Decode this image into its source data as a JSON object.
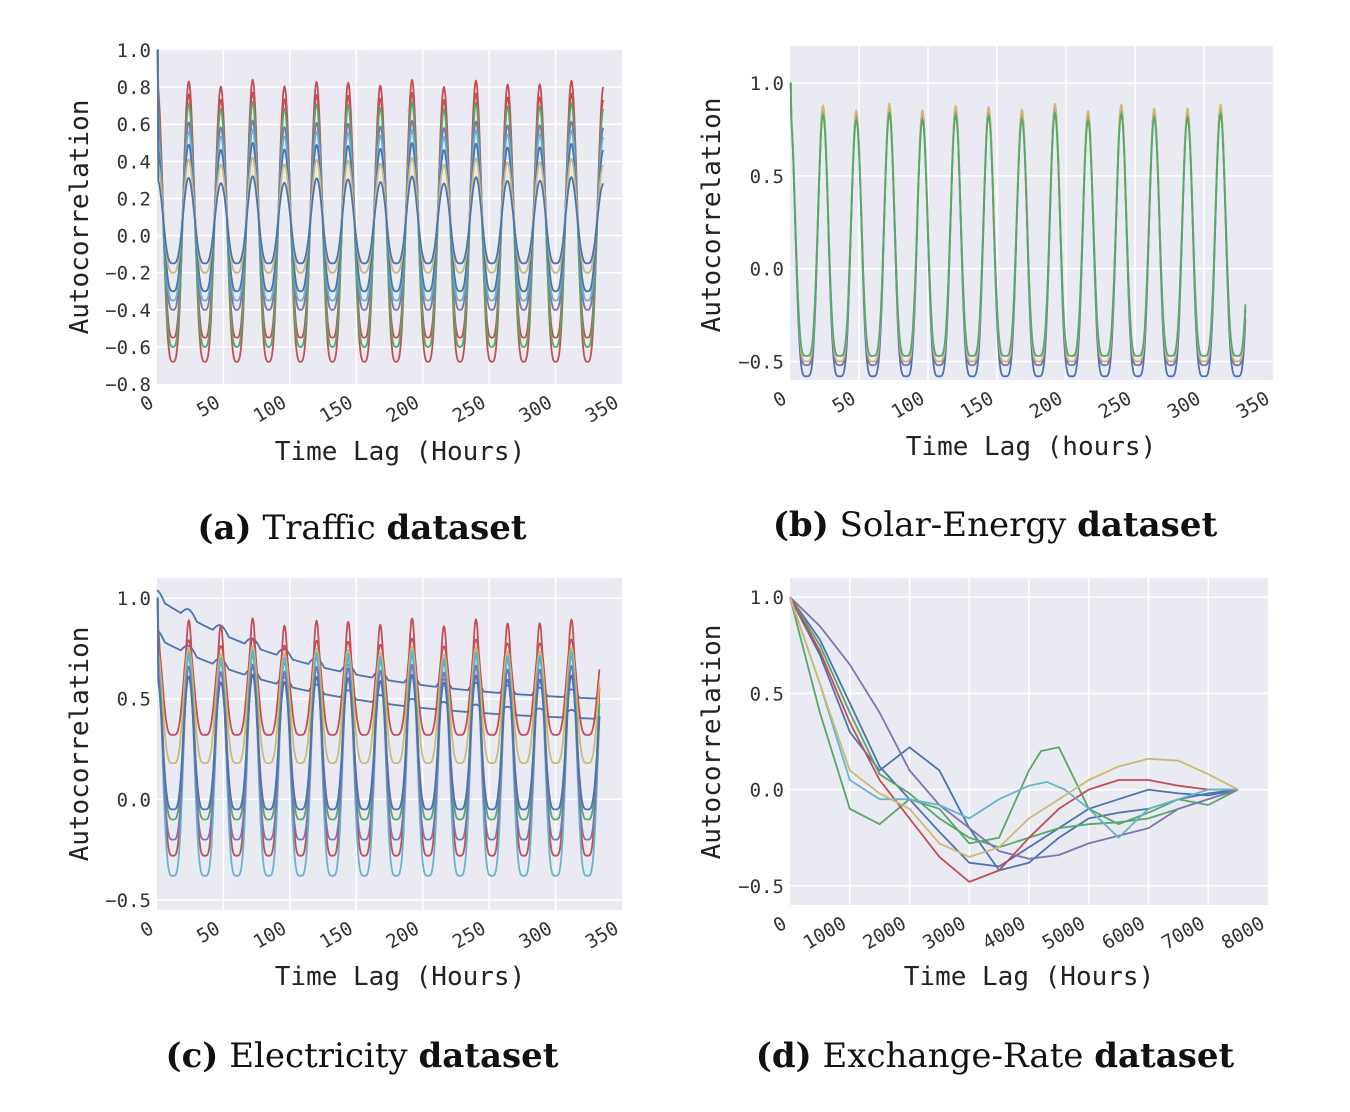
{
  "chart_data": [
    {
      "type": "line",
      "panel": "a",
      "caption": {
        "letter": "(a)",
        "name": "Traffic",
        "suffix": "dataset"
      },
      "xlabel": "Time Lag (Hours)",
      "ylabel": "Autocorrelation",
      "xlim": [
        0,
        350
      ],
      "ylim": [
        -0.8,
        1.0
      ],
      "x_ticks": [
        "0",
        "50",
        "100",
        "150",
        "200",
        "250",
        "300",
        "350"
      ],
      "y_ticks": [
        "−0.8",
        "−0.6",
        "−0.4",
        "−0.2",
        "0.0",
        "0.2",
        "0.4",
        "0.6",
        "0.8",
        "1.0"
      ],
      "x_tick_values": [
        0,
        50,
        100,
        150,
        200,
        250,
        300,
        350
      ],
      "y_tick_values": [
        -0.8,
        -0.6,
        -0.4,
        -0.2,
        0.0,
        0.2,
        0.4,
        0.6,
        0.8,
        1.0
      ],
      "period_hours": 24,
      "lag_max": 336,
      "series": [
        {
          "name": "series-1",
          "color": "#c44e52",
          "peak": 0.82,
          "trough": -0.68,
          "width": 0.6
        },
        {
          "name": "series-2",
          "color": "#c44e52",
          "peak": 0.75,
          "trough": -0.55,
          "width": 0.6
        },
        {
          "name": "series-3",
          "color": "#55a868",
          "peak": 0.7,
          "trough": -0.6,
          "width": 0.6
        },
        {
          "name": "series-4",
          "color": "#8172b2",
          "peak": 0.6,
          "trough": -0.4,
          "width": 0.6
        },
        {
          "name": "series-5",
          "color": "#64b5cd",
          "peak": 0.55,
          "trough": -0.35,
          "width": 0.6
        },
        {
          "name": "series-6",
          "color": "#4c72b0",
          "peak": 0.48,
          "trough": -0.3,
          "width": 0.6
        },
        {
          "name": "series-7",
          "color": "#ccb974",
          "peak": 0.4,
          "trough": -0.2,
          "width": 0.6
        },
        {
          "name": "series-8",
          "color": "#4c72b0",
          "peak": 0.3,
          "trough": -0.15,
          "width": 0.6
        }
      ]
    },
    {
      "type": "line",
      "panel": "b",
      "caption": {
        "letter": "(b)",
        "name": "Solar-Energy",
        "suffix": "dataset"
      },
      "xlabel": "Time Lag (hours)",
      "ylabel": "Autocorrelation",
      "xlim": [
        0,
        350
      ],
      "ylim": [
        -0.6,
        1.2
      ],
      "x_ticks": [
        "0",
        "50",
        "100",
        "150",
        "200",
        "250",
        "300",
        "350"
      ],
      "y_ticks": [
        "−0.5",
        "0.0",
        "0.5",
        "1.0"
      ],
      "x_tick_values": [
        0,
        50,
        100,
        150,
        200,
        250,
        300,
        350
      ],
      "y_tick_values": [
        -0.5,
        0.0,
        0.5,
        1.0
      ],
      "period_hours": 24,
      "lag_max": 330,
      "series": [
        {
          "name": "series-1",
          "color": "#4c72b0",
          "peak": 0.85,
          "trough": -0.58,
          "width": 0.45
        },
        {
          "name": "series-2",
          "color": "#8172b2",
          "peak": 0.86,
          "trough": -0.52,
          "width": 0.45
        },
        {
          "name": "series-3",
          "color": "#ccb974",
          "peak": 0.87,
          "trough": -0.5,
          "width": 0.45
        },
        {
          "name": "series-4",
          "color": "#55a868",
          "peak": 0.82,
          "trough": -0.47,
          "width": 0.45
        }
      ]
    },
    {
      "type": "line",
      "panel": "c",
      "caption": {
        "letter": "(c)",
        "name": "Electricity",
        "suffix": "dataset"
      },
      "xlabel": "Time Lag (Hours)",
      "ylabel": "Autocorrelation",
      "xlim": [
        0,
        350
      ],
      "ylim": [
        -0.55,
        1.1
      ],
      "x_ticks": [
        "0",
        "50",
        "100",
        "150",
        "200",
        "250",
        "300",
        "350"
      ],
      "y_ticks": [
        "−0.5",
        "0.0",
        "0.5",
        "1.0"
      ],
      "x_tick_values": [
        0,
        50,
        100,
        150,
        200,
        250,
        300,
        350
      ],
      "y_tick_values": [
        -0.5,
        0.0,
        0.5,
        1.0
      ],
      "period_hours": 24,
      "lag_max": 333,
      "series": [
        {
          "name": "series-1",
          "color": "#4c72b0",
          "kind": "decay",
          "start": 1.0,
          "end": 0.5
        },
        {
          "name": "series-2",
          "color": "#4c72b0",
          "kind": "decay",
          "start": 0.8,
          "end": 0.4
        },
        {
          "name": "series-3",
          "color": "#c44e52",
          "peak": 0.88,
          "trough": -0.28,
          "width": 0.5
        },
        {
          "name": "series-4",
          "color": "#c44e52",
          "peak": 0.78,
          "trough": 0.32,
          "width": 0.5
        },
        {
          "name": "series-5",
          "color": "#ccb974",
          "peak": 0.74,
          "trough": 0.18,
          "width": 0.5
        },
        {
          "name": "series-6",
          "color": "#55a868",
          "peak": 0.7,
          "trough": -0.1,
          "width": 0.5
        },
        {
          "name": "series-7",
          "color": "#64b5cd",
          "peak": 0.72,
          "trough": -0.38,
          "width": 0.5
        },
        {
          "name": "series-8",
          "color": "#8172b2",
          "peak": 0.65,
          "trough": -0.2,
          "width": 0.5
        },
        {
          "name": "series-9",
          "color": "#4c72b0",
          "peak": 0.6,
          "trough": -0.05,
          "width": 0.5
        }
      ]
    },
    {
      "type": "line",
      "panel": "d",
      "caption": {
        "letter": "(d)",
        "name": "Exchange-Rate",
        "suffix": "dataset"
      },
      "xlabel": "Time Lag (Hours)",
      "ylabel": "Autocorrelation",
      "xlim": [
        0,
        8000
      ],
      "ylim": [
        -0.6,
        1.1
      ],
      "x_ticks": [
        "0",
        "1000",
        "2000",
        "3000",
        "4000",
        "5000",
        "6000",
        "7000",
        "8000"
      ],
      "y_ticks": [
        "−0.5",
        "0.0",
        "0.5",
        "1.0"
      ],
      "x_tick_values": [
        0,
        1000,
        2000,
        3000,
        4000,
        5000,
        6000,
        7000,
        8000
      ],
      "y_tick_values": [
        -0.5,
        0.0,
        0.5,
        1.0
      ],
      "series": [
        {
          "name": "blue-1",
          "color": "#4c72b0",
          "x": [
            0,
            500,
            1000,
            1500,
            2000,
            2500,
            3000,
            3500,
            4000,
            4500,
            5000,
            5500,
            6000,
            6500,
            7000,
            7500
          ],
          "y": [
            1.0,
            0.78,
            0.45,
            0.12,
            -0.05,
            -0.22,
            -0.38,
            -0.4,
            -0.3,
            -0.2,
            -0.1,
            -0.05,
            0.0,
            -0.02,
            -0.03,
            0.0
          ]
        },
        {
          "name": "blue-2",
          "color": "#4c72b0",
          "x": [
            0,
            500,
            1000,
            1500,
            2000,
            2500,
            3000,
            3500,
            4000,
            4500,
            5000,
            5500,
            6000,
            6500,
            7000,
            7500
          ],
          "y": [
            1.0,
            0.7,
            0.3,
            0.1,
            0.22,
            0.1,
            -0.2,
            -0.42,
            -0.38,
            -0.25,
            -0.15,
            -0.12,
            -0.1,
            -0.05,
            -0.02,
            0.0
          ]
        },
        {
          "name": "green-1",
          "color": "#55a868",
          "x": [
            0,
            500,
            1000,
            1500,
            2000,
            2500,
            3000,
            3500,
            4000,
            4200,
            4500,
            5000,
            5500,
            6000,
            6500,
            7000,
            7500
          ],
          "y": [
            1.0,
            0.4,
            -0.1,
            -0.18,
            -0.05,
            -0.1,
            -0.28,
            -0.25,
            0.1,
            0.2,
            0.22,
            -0.1,
            -0.18,
            -0.12,
            -0.05,
            -0.08,
            0.0
          ]
        },
        {
          "name": "green-2",
          "color": "#55a868",
          "x": [
            0,
            500,
            1000,
            1500,
            2000,
            2500,
            3000,
            3500,
            4000,
            4500,
            5000,
            5500,
            6000,
            6500,
            7000,
            7500
          ],
          "y": [
            1.0,
            0.75,
            0.4,
            0.08,
            -0.02,
            -0.15,
            -0.25,
            -0.3,
            -0.25,
            -0.2,
            -0.18,
            -0.17,
            -0.15,
            -0.1,
            -0.05,
            0.0
          ]
        },
        {
          "name": "red",
          "color": "#c44e52",
          "x": [
            0,
            500,
            1000,
            1500,
            2000,
            2500,
            3000,
            3500,
            4000,
            4500,
            5000,
            5500,
            6000,
            6500,
            7000,
            7500
          ],
          "y": [
            1.0,
            0.72,
            0.35,
            0.05,
            -0.15,
            -0.35,
            -0.48,
            -0.42,
            -0.25,
            -0.1,
            0.0,
            0.05,
            0.05,
            0.02,
            0.0,
            0.0
          ]
        },
        {
          "name": "purple",
          "color": "#8172b2",
          "x": [
            0,
            500,
            1000,
            1500,
            2000,
            2500,
            3000,
            3500,
            4000,
            4500,
            5000,
            5500,
            6000,
            6500,
            7000,
            7500
          ],
          "y": [
            1.0,
            0.85,
            0.65,
            0.4,
            0.1,
            -0.08,
            -0.2,
            -0.32,
            -0.36,
            -0.34,
            -0.28,
            -0.24,
            -0.2,
            -0.1,
            -0.05,
            0.0
          ]
        },
        {
          "name": "cyan",
          "color": "#64b5cd",
          "x": [
            0,
            500,
            1000,
            1500,
            2000,
            2500,
            3000,
            3500,
            4000,
            4300,
            4600,
            5000,
            5500,
            6000,
            6500,
            7000,
            7500
          ],
          "y": [
            1.0,
            0.55,
            0.05,
            -0.05,
            -0.05,
            -0.08,
            -0.15,
            -0.05,
            0.02,
            0.04,
            0.0,
            -0.1,
            -0.25,
            -0.1,
            -0.05,
            0.0,
            0.0
          ]
        },
        {
          "name": "yellow",
          "color": "#ccb974",
          "x": [
            0,
            500,
            1000,
            1500,
            2000,
            2500,
            3000,
            3500,
            4000,
            4500,
            5000,
            5500,
            6000,
            6500,
            7000,
            7500
          ],
          "y": [
            1.0,
            0.55,
            0.1,
            -0.02,
            -0.1,
            -0.28,
            -0.35,
            -0.3,
            -0.15,
            -0.05,
            0.05,
            0.12,
            0.16,
            0.15,
            0.08,
            0.0
          ]
        }
      ]
    }
  ]
}
